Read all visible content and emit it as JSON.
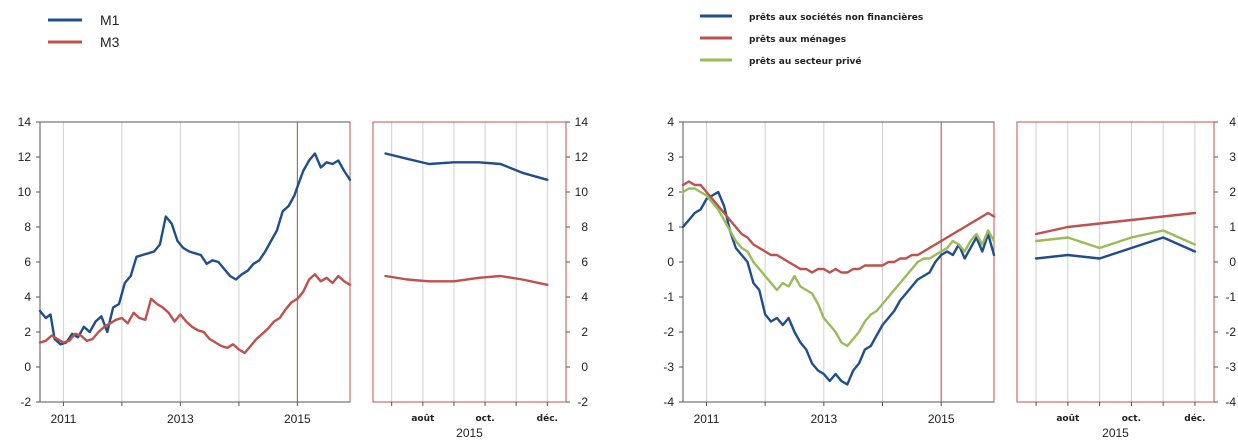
{
  "colors": {
    "blue": "#1f4e8c",
    "red": "#c0504d",
    "green": "#9bbb59",
    "grid": "#d0d0d0",
    "frame": "#555555",
    "marker": "#c0504d"
  },
  "chart_data": [
    {
      "id": "left-long",
      "type": "line",
      "ylim": [
        -2,
        14
      ],
      "yticks": [
        -2,
        0,
        2,
        4,
        6,
        8,
        10,
        12,
        14
      ],
      "xlim": [
        2010.6,
        2015.9
      ],
      "xgrid": [
        2011,
        2012,
        2013,
        2014,
        2015
      ],
      "xlabels": [
        {
          "label": "2011",
          "x": 2011
        },
        {
          "label": "2013",
          "x": 2013
        },
        {
          "label": "2015",
          "x": 2015
        }
      ],
      "marker_x": 2015,
      "grid": true,
      "series": [
        {
          "name": "M1",
          "color": "#1f4e8c",
          "x": [
            2010.6,
            2010.7,
            2010.78,
            2010.85,
            2010.95,
            2011.05,
            2011.15,
            2011.25,
            2011.35,
            2011.45,
            2011.55,
            2011.65,
            2011.75,
            2011.85,
            2011.95,
            2012.05,
            2012.15,
            2012.25,
            2012.35,
            2012.45,
            2012.55,
            2012.65,
            2012.75,
            2012.85,
            2012.95,
            2013.05,
            2013.15,
            2013.25,
            2013.35,
            2013.45,
            2013.55,
            2013.65,
            2013.75,
            2013.85,
            2013.95,
            2014.05,
            2014.15,
            2014.25,
            2014.35,
            2014.45,
            2014.55,
            2014.65,
            2014.75,
            2014.85,
            2014.95,
            2015.0,
            2015.1,
            2015.2,
            2015.3,
            2015.4,
            2015.5,
            2015.6,
            2015.7,
            2015.8,
            2015.9
          ],
          "y": [
            3.2,
            2.8,
            3.0,
            1.6,
            1.3,
            1.4,
            1.9,
            1.7,
            2.3,
            2.0,
            2.6,
            2.9,
            2.0,
            3.4,
            3.6,
            4.8,
            5.2,
            6.3,
            6.4,
            6.5,
            6.6,
            7.0,
            8.6,
            8.2,
            7.2,
            6.8,
            6.6,
            6.5,
            6.4,
            5.9,
            6.1,
            6.0,
            5.6,
            5.2,
            5.0,
            5.3,
            5.5,
            5.9,
            6.1,
            6.6,
            7.2,
            7.8,
            8.9,
            9.2,
            9.8,
            10.3,
            11.2,
            11.8,
            12.2,
            11.4,
            11.7,
            11.6,
            11.8,
            11.2,
            10.7
          ]
        },
        {
          "name": "M3",
          "color": "#c0504d",
          "x": [
            2010.6,
            2010.7,
            2010.8,
            2010.9,
            2011.0,
            2011.1,
            2011.2,
            2011.3,
            2011.4,
            2011.5,
            2011.6,
            2011.7,
            2011.8,
            2011.9,
            2012.0,
            2012.1,
            2012.2,
            2012.3,
            2012.4,
            2012.5,
            2012.6,
            2012.7,
            2012.8,
            2012.9,
            2013.0,
            2013.1,
            2013.2,
            2013.3,
            2013.4,
            2013.5,
            2013.6,
            2013.7,
            2013.8,
            2013.9,
            2014.0,
            2014.1,
            2014.2,
            2014.3,
            2014.4,
            2014.5,
            2014.6,
            2014.7,
            2014.8,
            2014.9,
            2015.0,
            2015.1,
            2015.2,
            2015.3,
            2015.4,
            2015.5,
            2015.6,
            2015.7,
            2015.8,
            2015.9
          ],
          "y": [
            1.4,
            1.5,
            1.8,
            1.6,
            1.4,
            1.5,
            1.9,
            1.8,
            1.5,
            1.6,
            2.0,
            2.3,
            2.5,
            2.7,
            2.8,
            2.5,
            3.1,
            2.8,
            2.7,
            3.9,
            3.6,
            3.4,
            3.1,
            2.6,
            3.0,
            2.6,
            2.3,
            2.1,
            2.0,
            1.6,
            1.4,
            1.2,
            1.1,
            1.3,
            1.0,
            0.8,
            1.2,
            1.6,
            1.9,
            2.2,
            2.6,
            2.8,
            3.3,
            3.7,
            3.9,
            4.3,
            5.0,
            5.3,
            4.9,
            5.1,
            4.8,
            5.2,
            4.9,
            4.7
          ]
        }
      ]
    },
    {
      "id": "left-zoom",
      "type": "line",
      "ylim": [
        -2,
        14
      ],
      "yticks": [
        -2,
        0,
        2,
        4,
        6,
        8,
        10,
        12,
        14
      ],
      "xlim": [
        6.4,
        12.6
      ],
      "xgrid": [
        7,
        8,
        9,
        10,
        11,
        12
      ],
      "xlabels": [
        {
          "label": "août",
          "x": 8
        },
        {
          "label": "oct.",
          "x": 10
        },
        {
          "label": "déc.",
          "x": 12
        }
      ],
      "year_label": "2015",
      "grid": true,
      "series": [
        {
          "name": "M1",
          "color": "#1f4e8c",
          "x": [
            6.8,
            7.5,
            8.2,
            9.0,
            9.8,
            10.5,
            11.2,
            12.0
          ],
          "y": [
            12.2,
            11.9,
            11.6,
            11.7,
            11.7,
            11.6,
            11.1,
            10.7
          ]
        },
        {
          "name": "M3",
          "color": "#c0504d",
          "x": [
            6.8,
            7.5,
            8.2,
            9.0,
            9.8,
            10.5,
            11.2,
            12.0
          ],
          "y": [
            5.2,
            5.0,
            4.9,
            4.9,
            5.1,
            5.2,
            5.0,
            4.7
          ]
        }
      ]
    },
    {
      "id": "right-long",
      "type": "line",
      "ylim": [
        -4,
        4
      ],
      "yticks": [
        -4,
        -3,
        -2,
        -1,
        0,
        1,
        2,
        3,
        4
      ],
      "xlim": [
        2010.6,
        2015.9
      ],
      "xgrid": [
        2011,
        2012,
        2013,
        2014,
        2015
      ],
      "xlabels": [
        {
          "label": "2011",
          "x": 2011
        },
        {
          "label": "2013",
          "x": 2013
        },
        {
          "label": "2015",
          "x": 2015
        }
      ],
      "marker_x": 2015,
      "grid": true,
      "series": [
        {
          "name": "prêts aux sociétés non financières",
          "color": "#1f4e8c",
          "x": [
            2010.6,
            2010.7,
            2010.8,
            2010.9,
            2011.0,
            2011.1,
            2011.2,
            2011.3,
            2011.4,
            2011.5,
            2011.6,
            2011.7,
            2011.8,
            2011.9,
            2012.0,
            2012.1,
            2012.2,
            2012.3,
            2012.4,
            2012.5,
            2012.6,
            2012.7,
            2012.8,
            2012.9,
            2013.0,
            2013.1,
            2013.2,
            2013.3,
            2013.4,
            2013.5,
            2013.6,
            2013.7,
            2013.8,
            2013.9,
            2014.0,
            2014.1,
            2014.2,
            2014.3,
            2014.4,
            2014.5,
            2014.6,
            2014.7,
            2014.8,
            2014.9,
            2015.0,
            2015.1,
            2015.2,
            2015.3,
            2015.4,
            2015.5,
            2015.6,
            2015.7,
            2015.8,
            2015.9
          ],
          "y": [
            1.0,
            1.2,
            1.4,
            1.5,
            1.8,
            1.9,
            2.0,
            1.6,
            0.9,
            0.4,
            0.2,
            0.0,
            -0.6,
            -0.8,
            -1.5,
            -1.7,
            -1.6,
            -1.8,
            -1.6,
            -2.0,
            -2.3,
            -2.5,
            -2.9,
            -3.1,
            -3.2,
            -3.4,
            -3.2,
            -3.4,
            -3.5,
            -3.1,
            -2.9,
            -2.5,
            -2.4,
            -2.1,
            -1.8,
            -1.6,
            -1.4,
            -1.1,
            -0.9,
            -0.7,
            -0.5,
            -0.4,
            -0.3,
            0.0,
            0.2,
            0.3,
            0.2,
            0.5,
            0.1,
            0.4,
            0.7,
            0.3,
            0.8,
            0.2
          ]
        },
        {
          "name": "prêts aux ménages",
          "color": "#c0504d",
          "x": [
            2010.6,
            2010.7,
            2010.8,
            2010.9,
            2011.0,
            2011.1,
            2011.2,
            2011.3,
            2011.4,
            2011.5,
            2011.6,
            2011.7,
            2011.8,
            2011.9,
            2012.0,
            2012.1,
            2012.2,
            2012.3,
            2012.4,
            2012.5,
            2012.6,
            2012.7,
            2012.8,
            2012.9,
            2013.0,
            2013.1,
            2013.2,
            2013.3,
            2013.4,
            2013.5,
            2013.6,
            2013.7,
            2013.8,
            2013.9,
            2014.0,
            2014.1,
            2014.2,
            2014.3,
            2014.4,
            2014.5,
            2014.6,
            2014.7,
            2014.8,
            2014.9,
            2015.0,
            2015.1,
            2015.2,
            2015.3,
            2015.4,
            2015.5,
            2015.6,
            2015.7,
            2015.8,
            2015.9
          ],
          "y": [
            2.2,
            2.3,
            2.2,
            2.2,
            2.0,
            1.8,
            1.6,
            1.4,
            1.2,
            1.0,
            0.8,
            0.7,
            0.5,
            0.4,
            0.3,
            0.2,
            0.2,
            0.1,
            0.0,
            -0.1,
            -0.2,
            -0.2,
            -0.3,
            -0.2,
            -0.2,
            -0.3,
            -0.2,
            -0.3,
            -0.3,
            -0.2,
            -0.2,
            -0.1,
            -0.1,
            -0.1,
            -0.1,
            0.0,
            0.0,
            0.1,
            0.1,
            0.2,
            0.2,
            0.3,
            0.4,
            0.5,
            0.6,
            0.7,
            0.8,
            0.9,
            1.0,
            1.1,
            1.2,
            1.3,
            1.4,
            1.3
          ]
        },
        {
          "name": "prêts au secteur privé",
          "color": "#9bbb59",
          "x": [
            2010.6,
            2010.7,
            2010.8,
            2010.9,
            2011.0,
            2011.1,
            2011.2,
            2011.3,
            2011.4,
            2011.5,
            2011.6,
            2011.7,
            2011.8,
            2011.9,
            2012.0,
            2012.1,
            2012.2,
            2012.3,
            2012.4,
            2012.5,
            2012.6,
            2012.7,
            2012.8,
            2012.9,
            2013.0,
            2013.1,
            2013.2,
            2013.3,
            2013.4,
            2013.5,
            2013.6,
            2013.7,
            2013.8,
            2013.9,
            2014.0,
            2014.1,
            2014.2,
            2014.3,
            2014.4,
            2014.5,
            2014.6,
            2014.7,
            2014.8,
            2014.9,
            2015.0,
            2015.1,
            2015.2,
            2015.3,
            2015.4,
            2015.5,
            2015.6,
            2015.7,
            2015.8,
            2015.9
          ],
          "y": [
            2.0,
            2.1,
            2.1,
            2.0,
            1.9,
            1.7,
            1.5,
            1.2,
            0.9,
            0.6,
            0.4,
            0.3,
            0.0,
            -0.2,
            -0.4,
            -0.6,
            -0.8,
            -0.6,
            -0.7,
            -0.4,
            -0.7,
            -0.8,
            -0.9,
            -1.2,
            -1.6,
            -1.8,
            -2.0,
            -2.3,
            -2.4,
            -2.2,
            -2.0,
            -1.7,
            -1.5,
            -1.4,
            -1.2,
            -1.0,
            -0.8,
            -0.6,
            -0.4,
            -0.2,
            0.0,
            0.1,
            0.1,
            0.2,
            0.3,
            0.4,
            0.6,
            0.5,
            0.3,
            0.6,
            0.8,
            0.5,
            0.9,
            0.6
          ]
        }
      ]
    },
    {
      "id": "right-zoom",
      "type": "line",
      "ylim": [
        -4,
        4
      ],
      "yticks": [
        -4,
        -3,
        -2,
        -1,
        0,
        1,
        2,
        3,
        4
      ],
      "xlim": [
        6.4,
        12.6
      ],
      "xgrid": [
        7,
        8,
        9,
        10,
        11,
        12
      ],
      "xlabels": [
        {
          "label": "août",
          "x": 8
        },
        {
          "label": "oct.",
          "x": 10
        },
        {
          "label": "déc.",
          "x": 12
        }
      ],
      "year_label": "2015",
      "grid": true,
      "series": [
        {
          "name": "prêts aux sociétés non financières",
          "color": "#1f4e8c",
          "x": [
            7,
            8,
            9,
            10,
            11,
            12
          ],
          "y": [
            0.1,
            0.2,
            0.1,
            0.4,
            0.7,
            0.3
          ]
        },
        {
          "name": "prêts aux ménages",
          "color": "#c0504d",
          "x": [
            7,
            8,
            9,
            10,
            11,
            12
          ],
          "y": [
            0.8,
            1.0,
            1.1,
            1.2,
            1.3,
            1.4
          ]
        },
        {
          "name": "prêts au secteur privé",
          "color": "#9bbb59",
          "x": [
            7,
            8,
            9,
            10,
            11,
            12
          ],
          "y": [
            0.6,
            0.7,
            0.4,
            0.7,
            0.9,
            0.5
          ]
        }
      ]
    }
  ],
  "legends": {
    "left": [
      {
        "label": "M1",
        "color": "#1f4e8c"
      },
      {
        "label": "M3",
        "color": "#c0504d"
      }
    ],
    "right": [
      {
        "label": "prêts aux sociétés non financières",
        "color": "#1f4e8c"
      },
      {
        "label": "prêts aux ménages",
        "color": "#c0504d"
      },
      {
        "label": "prêts au secteur privé",
        "color": "#9bbb59"
      }
    ]
  }
}
